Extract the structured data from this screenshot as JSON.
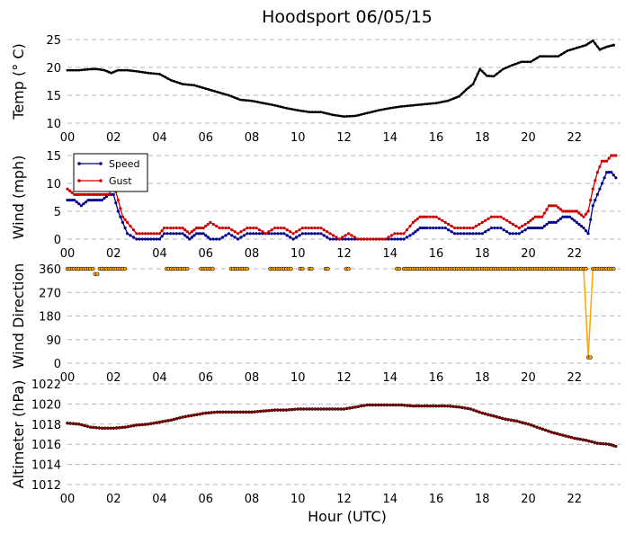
{
  "title": "Hoodsport 06/05/15",
  "xlabel": "Hour (UTC)",
  "chart_data": [
    {
      "type": "line",
      "ylabel": "Temp (° C)",
      "x_ticks": [
        "00",
        "02",
        "04",
        "06",
        "08",
        "10",
        "12",
        "14",
        "16",
        "18",
        "20",
        "22"
      ],
      "y_ticks": [
        "25",
        "20",
        "15",
        "10"
      ],
      "ylim": [
        10,
        25
      ],
      "xlim_hours": [
        0,
        24
      ],
      "series": [
        {
          "color": "#000000",
          "x": [
            0,
            0.5,
            1,
            1.3,
            1.6,
            1.9,
            2.2,
            2.6,
            3,
            3.5,
            4,
            4.5,
            5,
            5.5,
            6,
            6.5,
            7,
            7.5,
            8,
            8.5,
            9,
            9.5,
            10,
            10.5,
            11,
            11.5,
            12,
            12.5,
            13,
            13.5,
            14,
            14.5,
            15,
            15.5,
            16,
            16.5,
            17,
            17.3,
            17.6,
            17.9,
            18.2,
            18.5,
            18.9,
            19.3,
            19.7,
            20.1,
            20.5,
            20.9,
            21.3,
            21.7,
            22.1,
            22.5,
            22.8,
            23.1,
            23.4,
            23.7
          ],
          "y": [
            19.5,
            19.5,
            19.7,
            19.7,
            19.5,
            19,
            19.5,
            19.5,
            19.3,
            19,
            18.8,
            17.7,
            17,
            16.8,
            16.2,
            15.6,
            15,
            14.2,
            14,
            13.6,
            13.2,
            12.7,
            12.3,
            12,
            12,
            11.5,
            11.2,
            11.3,
            11.8,
            12.3,
            12.7,
            13,
            13.2,
            13.4,
            13.6,
            14,
            14.8,
            16,
            17,
            19.7,
            18.5,
            18.4,
            19.7,
            20.4,
            21,
            21,
            22,
            22,
            22,
            23,
            23.5,
            24,
            24.8,
            23.2,
            23.7,
            24
          ]
        }
      ]
    },
    {
      "type": "line",
      "ylabel": "Wind (mph)",
      "x_ticks": [
        "00",
        "02",
        "04",
        "06",
        "08",
        "10",
        "12",
        "14",
        "16",
        "18",
        "20",
        "22"
      ],
      "y_ticks": [
        "15",
        "10",
        "5",
        "0"
      ],
      "ylim": [
        0,
        15
      ],
      "legend": "top-left",
      "series": [
        {
          "name": "Speed",
          "color": "#00008b",
          "x": [
            0,
            0.3,
            0.6,
            0.9,
            1.2,
            1.5,
            1.8,
            2.0,
            2.2,
            2.4,
            2.6,
            3,
            3.5,
            4,
            4.2,
            4.6,
            5,
            5.3,
            5.6,
            5.9,
            6.2,
            6.6,
            7,
            7.4,
            7.8,
            8.2,
            8.6,
            9,
            9.4,
            9.8,
            10.2,
            10.6,
            11,
            11.4,
            11.8,
            12.2,
            12.6,
            13,
            13.4,
            13.8,
            14.2,
            14.6,
            15,
            15.3,
            15.6,
            16,
            16.4,
            16.8,
            17.2,
            17.6,
            18,
            18.4,
            18.8,
            19.2,
            19.6,
            20,
            20.3,
            20.6,
            20.9,
            21.2,
            21.5,
            21.8,
            22.1,
            22.4,
            22.6,
            22.8,
            23,
            23.2,
            23.4,
            23.6,
            23.8
          ],
          "y": [
            7,
            7,
            6,
            7,
            7,
            7,
            8,
            8,
            5,
            3,
            1,
            0,
            0,
            0,
            1,
            1,
            1,
            0,
            1,
            1,
            0,
            0,
            1,
            0,
            1,
            1,
            1,
            1,
            1,
            0,
            1,
            1,
            1,
            0,
            0,
            0,
            0,
            0,
            0,
            0,
            0,
            0,
            1,
            2,
            2,
            2,
            2,
            1,
            1,
            1,
            1,
            2,
            2,
            1,
            1,
            2,
            2,
            2,
            3,
            3,
            4,
            4,
            3,
            2,
            1,
            6,
            8,
            10,
            12,
            12,
            11
          ]
        },
        {
          "name": "Gust",
          "color": "#cc0000",
          "x": [
            0,
            0.3,
            0.6,
            0.9,
            1.2,
            1.5,
            1.8,
            2.0,
            2.2,
            2.4,
            2.6,
            3,
            3.5,
            4,
            4.2,
            4.6,
            5,
            5.3,
            5.6,
            5.9,
            6.2,
            6.6,
            7,
            7.4,
            7.8,
            8.2,
            8.6,
            9,
            9.4,
            9.8,
            10.2,
            10.6,
            11,
            11.4,
            11.8,
            12.2,
            12.6,
            13,
            13.4,
            13.8,
            14.2,
            14.6,
            15,
            15.3,
            15.6,
            16,
            16.4,
            16.8,
            17.2,
            17.6,
            18,
            18.4,
            18.8,
            19.2,
            19.6,
            20,
            20.3,
            20.6,
            20.9,
            21.2,
            21.5,
            21.8,
            22.1,
            22.4,
            22.6,
            22.8,
            23,
            23.2,
            23.4,
            23.6,
            23.8
          ],
          "y": [
            9,
            8,
            8,
            8,
            8,
            8,
            8,
            10,
            7,
            4,
            3,
            1,
            1,
            1,
            2,
            2,
            2,
            1,
            2,
            2,
            3,
            2,
            2,
            1,
            2,
            2,
            1,
            2,
            2,
            1,
            2,
            2,
            2,
            1,
            0,
            1,
            0,
            0,
            0,
            0,
            1,
            1,
            3,
            4,
            4,
            4,
            3,
            2,
            2,
            2,
            3,
            4,
            4,
            3,
            2,
            3,
            4,
            4,
            6,
            6,
            5,
            5,
            5,
            4,
            5,
            9,
            12,
            14,
            14,
            15,
            15
          ]
        }
      ]
    },
    {
      "type": "scatter",
      "ylabel": "Wind Direction",
      "x_ticks": [
        "00",
        "02",
        "04",
        "06",
        "08",
        "10",
        "12",
        "14",
        "16",
        "18",
        "20",
        "22"
      ],
      "y_ticks": [
        "360",
        "270",
        "180",
        "90",
        "0"
      ],
      "ylim": [
        0,
        360
      ],
      "series": [
        {
          "color": "#ffa500",
          "x": [
            0,
            0.2,
            0.4,
            0.6,
            0.8,
            1,
            1.2,
            1.4,
            1.6,
            1.8,
            2,
            2.2,
            2.4,
            4.3,
            4.5,
            4.7,
            4.9,
            5.1,
            5.8,
            6,
            6.2,
            7.1,
            7.3,
            7.5,
            7.7,
            8.8,
            9,
            9.2,
            9.4,
            9.6,
            10.1,
            10.5,
            11.2,
            12.1,
            14.3,
            14.6,
            14.8,
            15,
            15.2,
            15.4,
            15.6,
            15.8,
            16,
            16.2,
            16.4,
            16.6,
            16.8,
            17,
            17.2,
            17.4,
            17.6,
            17.8,
            18,
            18.2,
            18.4,
            18.6,
            18.8,
            19,
            19.2,
            19.4,
            19.6,
            19.8,
            20,
            20.2,
            20.4,
            20.6,
            20.8,
            21,
            21.2,
            21.4,
            21.6,
            21.8,
            22,
            22.2,
            22.4,
            22.6,
            22.8,
            23,
            23.2,
            23.4,
            23.6
          ],
          "y": [
            360,
            360,
            360,
            360,
            360,
            360,
            340,
            360,
            360,
            360,
            360,
            360,
            360,
            360,
            360,
            360,
            360,
            360,
            360,
            360,
            360,
            360,
            360,
            360,
            360,
            360,
            360,
            360,
            360,
            360,
            360,
            360,
            360,
            360,
            360,
            360,
            360,
            360,
            360,
            360,
            360,
            360,
            360,
            360,
            360,
            360,
            360,
            360,
            360,
            360,
            360,
            360,
            360,
            360,
            360,
            360,
            360,
            360,
            360,
            360,
            360,
            360,
            360,
            360,
            360,
            360,
            360,
            360,
            360,
            360,
            360,
            360,
            360,
            360,
            360,
            22,
            360,
            360,
            360,
            360,
            360
          ]
        }
      ]
    },
    {
      "type": "line",
      "ylabel": "Altimeter (hPa)",
      "x_ticks": [
        "00",
        "02",
        "04",
        "06",
        "08",
        "10",
        "12",
        "14",
        "16",
        "18",
        "20",
        "22"
      ],
      "y_ticks": [
        "1022",
        "1020",
        "1018",
        "1016",
        "1014",
        "1012"
      ],
      "ylim": [
        1012,
        1022
      ],
      "series": [
        {
          "color": "#8b0000",
          "x": [
            0,
            0.5,
            1,
            1.5,
            2,
            2.5,
            3,
            3.5,
            4,
            4.5,
            5,
            5.5,
            6,
            6.5,
            7,
            7.5,
            8,
            8.5,
            9,
            9.5,
            10,
            10.5,
            11,
            11.5,
            12,
            12.5,
            13,
            13.5,
            14,
            14.5,
            15,
            15.5,
            16,
            16.5,
            17,
            17.5,
            18,
            18.5,
            19,
            19.5,
            20,
            20.5,
            21,
            21.5,
            22,
            22.5,
            23,
            23.5,
            23.8
          ],
          "y": [
            1018.1,
            1018.0,
            1017.7,
            1017.6,
            1017.6,
            1017.7,
            1017.9,
            1018.0,
            1018.2,
            1018.4,
            1018.7,
            1018.9,
            1019.1,
            1019.2,
            1019.2,
            1019.2,
            1019.2,
            1019.3,
            1019.4,
            1019.4,
            1019.5,
            1019.5,
            1019.5,
            1019.5,
            1019.5,
            1019.7,
            1019.9,
            1019.9,
            1019.9,
            1019.9,
            1019.8,
            1019.8,
            1019.8,
            1019.8,
            1019.7,
            1019.5,
            1019.1,
            1018.8,
            1018.5,
            1018.3,
            1018.0,
            1017.6,
            1017.2,
            1016.9,
            1016.6,
            1016.4,
            1016.1,
            1016.0,
            1015.8
          ]
        }
      ]
    }
  ]
}
